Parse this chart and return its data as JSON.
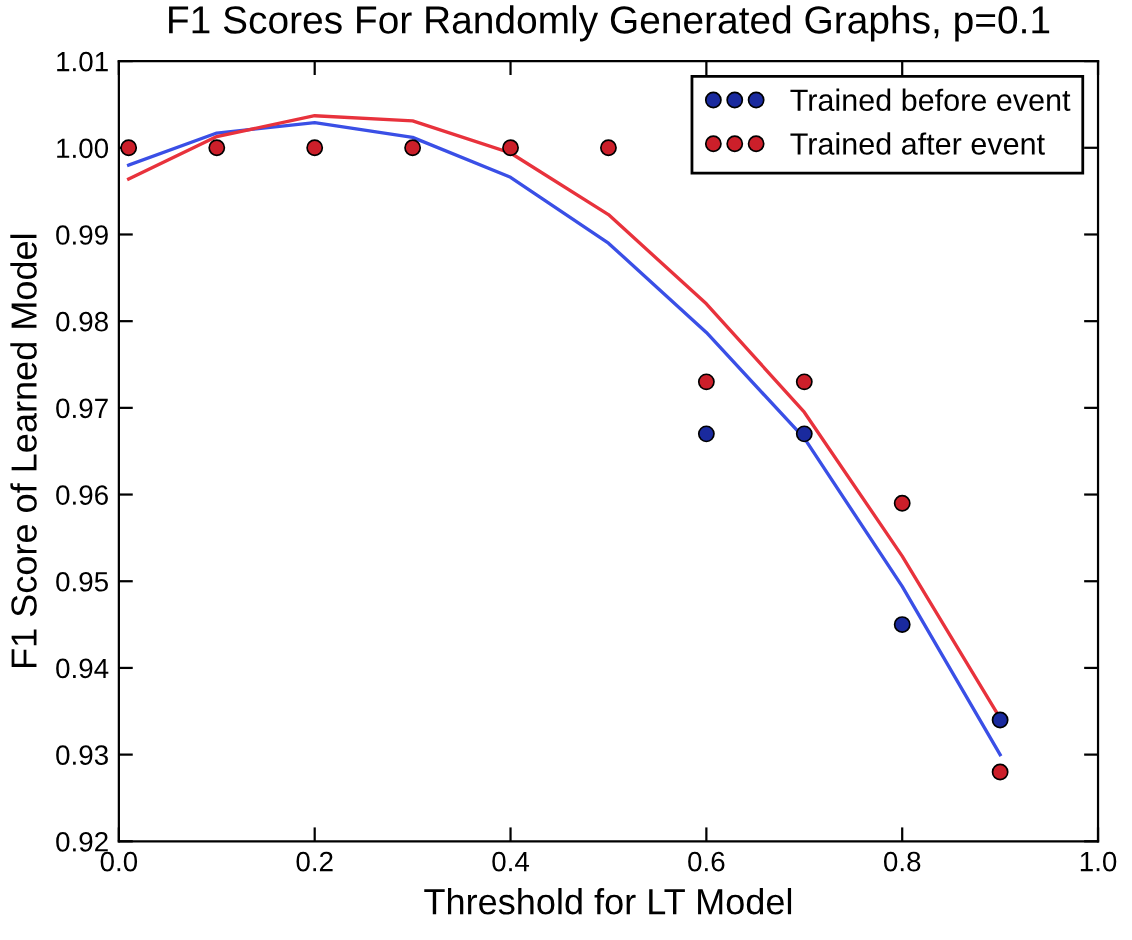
{
  "chart_data": {
    "type": "scatter",
    "title": "F1 Scores For Randomly Generated Graphs, p=0.1",
    "xlabel": "Threshold for LT Model",
    "ylabel": "F1 Score of Learned Model",
    "x": [
      0.01,
      0.1,
      0.2,
      0.3,
      0.4,
      0.5,
      0.6,
      0.7,
      0.8,
      0.9
    ],
    "series": [
      {
        "name": "Trained before event",
        "color": "#1a2a9e",
        "values": [
          null,
          null,
          null,
          null,
          null,
          null,
          0.967,
          0.967,
          0.945,
          0.934
        ]
      },
      {
        "name": "Trained after event",
        "color": "#cc1f2a",
        "values": [
          1.0,
          1.0,
          1.0,
          1.0,
          1.0,
          1.0,
          0.973,
          0.973,
          0.959,
          0.928
        ]
      },
      {
        "type": "line",
        "color": "#3a4fe6",
        "values": [
          0.998,
          1.0017,
          1.0029,
          1.0012,
          0.9966,
          0.989,
          0.9787,
          0.9665,
          0.9494,
          0.93
        ]
      },
      {
        "type": "line",
        "color": "#e8323c",
        "values": [
          0.9964,
          1.0013,
          1.0037,
          1.0031,
          0.9994,
          0.9923,
          0.982,
          0.9695,
          0.9529,
          0.9342
        ]
      }
    ],
    "xlim": [
      0.0,
      1.0
    ],
    "xticks": [
      {
        "value": 0.0,
        "label": "0.0"
      },
      {
        "value": 0.2,
        "label": "0.2"
      },
      {
        "value": 0.4,
        "label": "0.4"
      },
      {
        "value": 0.6,
        "label": "0.6"
      },
      {
        "value": 0.8,
        "label": "0.8"
      },
      {
        "value": 1.0,
        "label": "1.0"
      }
    ],
    "ylim": [
      0.92,
      1.01
    ],
    "yticks": [
      0.92,
      0.93,
      0.94,
      0.95,
      0.96,
      0.97,
      0.98,
      0.99,
      {
        "value": 1.0,
        "label": "1.00"
      },
      1.01
    ],
    "grid": false,
    "legend": "top right"
  }
}
